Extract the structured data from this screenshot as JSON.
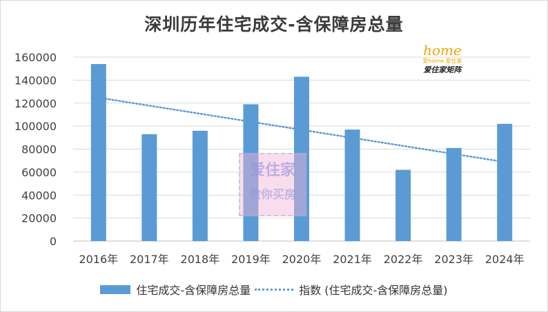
{
  "chart_data": {
    "type": "bar",
    "title": "深圳历年住宅成交-含保障房总量",
    "categories": [
      "2016年",
      "2017年",
      "2018年",
      "2019年",
      "2020年",
      "2021年",
      "2022年",
      "2023年",
      "2024年"
    ],
    "series": [
      {
        "name": "住宅成交-含保障房总量",
        "type": "bar",
        "color": "#5b9bd5",
        "values": [
          154000,
          93000,
          96000,
          119000,
          143000,
          97000,
          62000,
          81000,
          102000
        ]
      },
      {
        "name": "指数 (住宅成交-含保障房总量)",
        "type": "trendline",
        "style": "dotted",
        "color": "#5b9bd5",
        "values": [
          124800,
          117800,
          110800,
          103800,
          96800,
          89800,
          82800,
          75800,
          68800
        ]
      }
    ],
    "ylim": [
      0,
      160000
    ],
    "yticks": [
      0,
      20000,
      40000,
      60000,
      80000,
      100000,
      120000,
      140000,
      160000
    ],
    "grid": true,
    "legend": "bottom"
  },
  "logo": {
    "main": "home",
    "line1": "爱home 爱住家",
    "line2": "爱住家矩阵"
  },
  "watermark": {
    "line1": "爱住家",
    "line2": "教你买房"
  }
}
